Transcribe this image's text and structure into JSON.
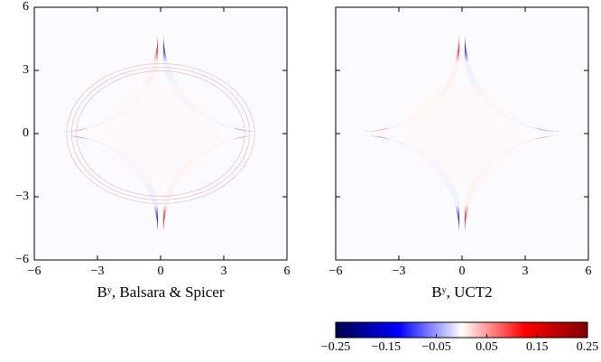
{
  "chart_data": [
    {
      "type": "heatmap",
      "xlabel": "Bʸ,  Balsara & Spicer",
      "xlim": [
        -6,
        6
      ],
      "ylim": [
        -6,
        6
      ],
      "xticks": [
        {
          "value": -6,
          "label": "−6"
        },
        {
          "value": -3,
          "label": "−3"
        },
        0,
        3,
        6
      ],
      "yticks": [
        {
          "value": -6,
          "label": "−6"
        },
        {
          "value": -3,
          "label": "−3"
        },
        0,
        3,
        6
      ],
      "show_ytick_labels": true,
      "fine_rings": true
    },
    {
      "type": "heatmap",
      "xlabel": "Bʸ,  UCT2",
      "xlim": [
        -6,
        6
      ],
      "ylim": [
        -6,
        6
      ],
      "xticks": [
        {
          "value": -6,
          "label": "−6"
        },
        {
          "value": -3,
          "label": "−3"
        },
        0,
        3,
        6
      ],
      "yticks": [
        -6,
        -3,
        0,
        3,
        6
      ],
      "show_ytick_labels": false,
      "fine_rings": false
    },
    {
      "type": "colorbar",
      "clim": [
        -0.25,
        0.25
      ],
      "colors": [
        "#00004c",
        "#0000ff",
        "#ffffff",
        "#ff0000",
        "#800000"
      ],
      "ticks": [
        {
          "value": -0.25,
          "label": "−0.25"
        },
        {
          "value": -0.15,
          "label": "−0.15"
        },
        {
          "value": -0.05,
          "label": "−0.05"
        },
        0.05,
        0.15,
        0.25
      ]
    }
  ]
}
